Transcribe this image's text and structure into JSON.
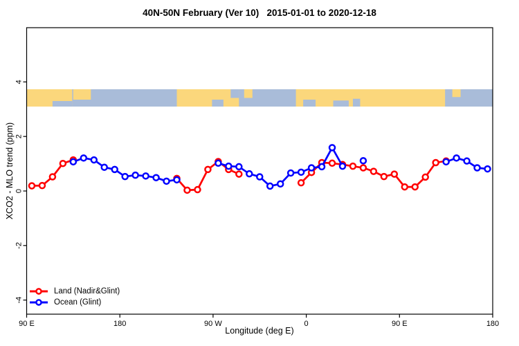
{
  "chart_data": {
    "type": "line",
    "title": "40N-50N February (Ver 10)   2015-01-01 to 2020-12-18",
    "xlabel": "Longitude (deg E)",
    "ylabel": "XCO2 - MLO trend (ppm)",
    "grid": false,
    "legend_position": "bottom-left",
    "x_axis": {
      "min": 90,
      "max": 540,
      "ticks": [
        {
          "pos": 90,
          "label": "90 E"
        },
        {
          "pos": 180,
          "label": "180"
        },
        {
          "pos": 270,
          "label": "90 W"
        },
        {
          "pos": 360,
          "label": "0"
        },
        {
          "pos": 450,
          "label": "90 E"
        },
        {
          "pos": 540,
          "label": "180"
        }
      ]
    },
    "y_axis": {
      "ticks": [
        {
          "pos": 4,
          "label": "4"
        },
        {
          "pos": 2,
          "label": "2"
        },
        {
          "pos": 0,
          "label": "0"
        },
        {
          "pos": -2,
          "label": "-2"
        },
        {
          "pos": -4,
          "label": "-4"
        }
      ]
    },
    "series": [
      {
        "name": "Land (Nadir&Glint)",
        "color": "#ff0000",
        "marker": "open-circle",
        "segments": [
          [
            [
              95,
              0.19
            ],
            [
              105,
              0.2
            ],
            [
              115,
              0.52
            ],
            [
              125,
              1.01
            ],
            [
              135,
              1.14
            ]
          ],
          [
            [
              235,
              0.46
            ],
            [
              245,
              0.03
            ],
            [
              255,
              0.05
            ],
            [
              265,
              0.79
            ],
            [
              275,
              1.08
            ],
            [
              285,
              0.79
            ],
            [
              295,
              0.62
            ]
          ],
          [
            [
              355,
              0.3
            ],
            [
              365,
              0.68
            ],
            [
              375,
              1.04
            ],
            [
              385,
              1.02
            ],
            [
              395,
              0.97
            ],
            [
              405,
              0.91
            ],
            [
              415,
              0.85
            ],
            [
              425,
              0.72
            ],
            [
              435,
              0.53
            ],
            [
              445,
              0.62
            ],
            [
              455,
              0.15
            ],
            [
              465,
              0.15
            ],
            [
              475,
              0.51
            ],
            [
              485,
              1.04
            ],
            [
              495,
              1.1
            ]
          ]
        ]
      },
      {
        "name": "Ocean (Glint)",
        "color": "#0000ff",
        "marker": "open-circle",
        "segments": [
          [
            [
              135,
              1.07
            ],
            [
              145,
              1.21
            ],
            [
              155,
              1.14
            ],
            [
              165,
              0.87
            ],
            [
              175,
              0.79
            ],
            [
              185,
              0.53
            ],
            [
              195,
              0.58
            ],
            [
              205,
              0.55
            ],
            [
              215,
              0.49
            ],
            [
              225,
              0.36
            ],
            [
              235,
              0.41
            ]
          ],
          [
            [
              275,
              1.02
            ],
            [
              285,
              0.91
            ],
            [
              295,
              0.89
            ],
            [
              305,
              0.63
            ],
            [
              315,
              0.52
            ],
            [
              325,
              0.18
            ],
            [
              335,
              0.26
            ],
            [
              345,
              0.66
            ],
            [
              355,
              0.69
            ],
            [
              365,
              0.85
            ],
            [
              375,
              0.89
            ],
            [
              385,
              1.59
            ],
            [
              395,
              0.91
            ]
          ],
          [
            [
              415,
              1.11
            ]
          ],
          [
            [
              495,
              1.07
            ],
            [
              505,
              1.21
            ],
            [
              515,
              1.1
            ],
            [
              525,
              0.85
            ],
            [
              535,
              0.81
            ]
          ]
        ]
      }
    ],
    "map_strip": {
      "land_color": "#fbd77c",
      "ocean_color": "#a9bcd9",
      "lon_range": [
        90,
        540
      ],
      "land_segments": [
        {
          "from": 90,
          "to": 134,
          "top": 0,
          "bottom": 1
        },
        {
          "from": 135,
          "to": 152,
          "top": 0,
          "bottom": 0.6
        },
        {
          "from": 235,
          "to": 295,
          "top": 0,
          "bottom": 1
        },
        {
          "from": 300,
          "to": 308,
          "top": 0,
          "bottom": 0.5
        },
        {
          "from": 350,
          "to": 494,
          "top": 0,
          "bottom": 1
        },
        {
          "from": 501,
          "to": 509,
          "top": 0,
          "bottom": 0.45
        }
      ],
      "water_patches": [
        {
          "from": 115,
          "to": 134,
          "top": 0.68,
          "bottom": 1
        },
        {
          "from": 269,
          "to": 280,
          "top": 0.6,
          "bottom": 1
        },
        {
          "from": 287,
          "to": 295,
          "top": 0,
          "bottom": 0.5
        },
        {
          "from": 357,
          "to": 369,
          "top": 0.6,
          "bottom": 1
        },
        {
          "from": 386,
          "to": 401,
          "top": 0.65,
          "bottom": 1
        },
        {
          "from": 405,
          "to": 412,
          "top": 0.55,
          "bottom": 1
        }
      ]
    }
  }
}
